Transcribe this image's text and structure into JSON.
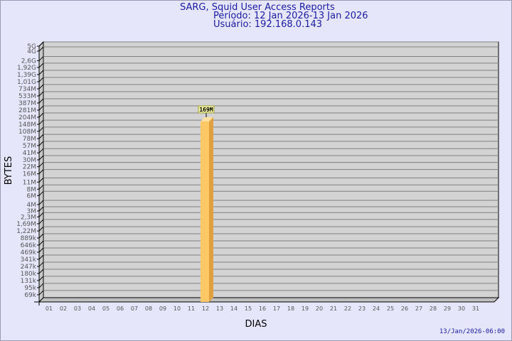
{
  "header": {
    "title": "SARG, Squid User Access Reports",
    "period": "Período: 12 Jan 2026-13 Jan 2026",
    "user": "Usuário: 192.168.0.143"
  },
  "footer": {
    "timestamp": "13/Jan/2026-06:00"
  },
  "chart_data": {
    "type": "bar",
    "style": "3d",
    "xlabel": "DIAS",
    "ylabel": "BYTES",
    "yscale": "log",
    "ylim": [
      50000,
      5000000000
    ],
    "grid": true,
    "categories": [
      "01",
      "02",
      "03",
      "04",
      "05",
      "06",
      "07",
      "08",
      "09",
      "10",
      "11",
      "12",
      "13",
      "14",
      "15",
      "16",
      "17",
      "18",
      "19",
      "20",
      "21",
      "22",
      "23",
      "24",
      "25",
      "26",
      "27",
      "28",
      "29",
      "30",
      "31"
    ],
    "values": [
      null,
      null,
      null,
      null,
      null,
      null,
      null,
      null,
      null,
      null,
      null,
      169000000,
      null,
      null,
      null,
      null,
      null,
      null,
      null,
      null,
      null,
      null,
      null,
      null,
      null,
      null,
      null,
      null,
      null,
      null,
      null
    ],
    "data_labels": {
      "12": "169M"
    },
    "yticks": [
      {
        "label": "69k",
        "value": 69000
      },
      {
        "label": "95k",
        "value": 95000
      },
      {
        "label": "131k",
        "value": 131000
      },
      {
        "label": "180k",
        "value": 180000
      },
      {
        "label": "247k",
        "value": 247000
      },
      {
        "label": "341k",
        "value": 341000
      },
      {
        "label": "469k",
        "value": 469000
      },
      {
        "label": "646k",
        "value": 646000
      },
      {
        "label": "889k",
        "value": 889000
      },
      {
        "label": "1,22M",
        "value": 1220000
      },
      {
        "label": "1,69M",
        "value": 1690000
      },
      {
        "label": "2,3M",
        "value": 2300000
      },
      {
        "label": "3M",
        "value": 3000000
      },
      {
        "label": "4M",
        "value": 4000000
      },
      {
        "label": "6M",
        "value": 6000000
      },
      {
        "label": "8M",
        "value": 8000000
      },
      {
        "label": "11M",
        "value": 11000000
      },
      {
        "label": "16M",
        "value": 16000000
      },
      {
        "label": "22M",
        "value": 22000000
      },
      {
        "label": "30M",
        "value": 30000000
      },
      {
        "label": "41M",
        "value": 41000000
      },
      {
        "label": "57M",
        "value": 57000000
      },
      {
        "label": "78M",
        "value": 78000000
      },
      {
        "label": "108M",
        "value": 108000000
      },
      {
        "label": "148M",
        "value": 148000000
      },
      {
        "label": "204M",
        "value": 204000000
      },
      {
        "label": "281M",
        "value": 281000000
      },
      {
        "label": "387M",
        "value": 387000000
      },
      {
        "label": "533M",
        "value": 533000000
      },
      {
        "label": "734M",
        "value": 734000000
      },
      {
        "label": "1,01G",
        "value": 1010000000
      },
      {
        "label": "1,39G",
        "value": 1390000000
      },
      {
        "label": "1,92G",
        "value": 1920000000
      },
      {
        "label": "2,6G",
        "value": 2600000000
      },
      {
        "label": "4G",
        "value": 4000000000
      },
      {
        "label": "5G",
        "value": 5000000000
      }
    ],
    "colors": {
      "bar_front": "#ffc866",
      "bar_side": "#e0a040",
      "bar_top": "#ffe0a0",
      "plot": "#d3d3d3",
      "grid": "#808080",
      "label_bg": "#f0f0a0"
    }
  }
}
